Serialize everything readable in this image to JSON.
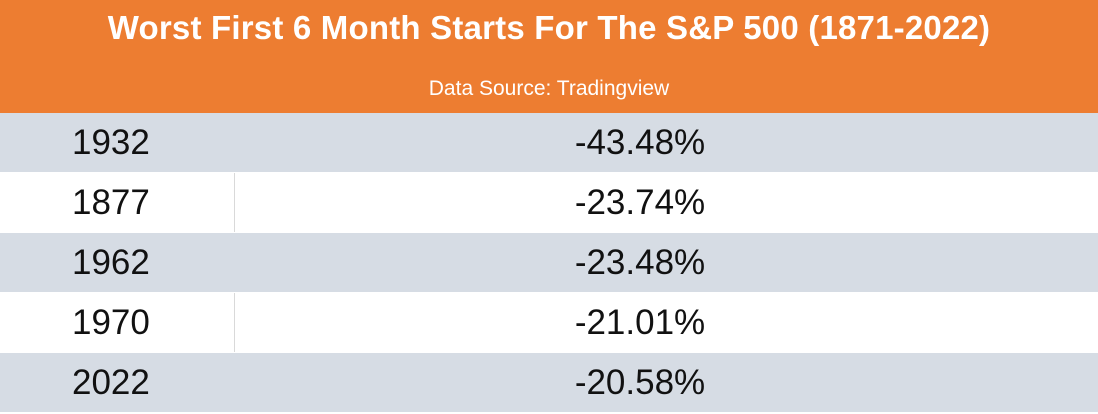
{
  "header": {
    "title": "Worst First 6 Month Starts For The S&P 500 (1871-2022)",
    "subtitle": "Data Source: Tradingview"
  },
  "colors": {
    "header_bg": "#ED7D31",
    "row_shade": "#D6DCE4",
    "row_plain": "#FFFFFF"
  },
  "chart_data": {
    "type": "table",
    "title": "Worst First 6 Month Starts For The S&P 500 (1871-2022)",
    "subtitle": "Data Source: Tradingview",
    "rows": [
      {
        "year": "1932",
        "return": "-43.48%"
      },
      {
        "year": "1877",
        "return": "-23.74%"
      },
      {
        "year": "1962",
        "return": "-23.48%"
      },
      {
        "year": "1970",
        "return": "-21.01%"
      },
      {
        "year": "2022",
        "return": "-20.58%"
      }
    ]
  }
}
